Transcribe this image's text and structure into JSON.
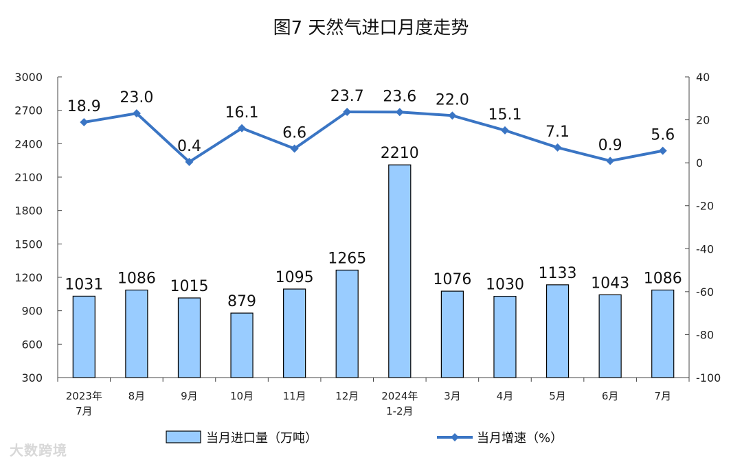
{
  "chart_data": {
    "type": "bar",
    "title": "图7  天然气进口月度走势",
    "categories": [
      "2023年\n7月",
      "8月",
      "9月",
      "10月",
      "11月",
      "12月",
      "2024年\n1-2月",
      "3月",
      "4月",
      "5月",
      "6月",
      "7月"
    ],
    "series": [
      {
        "name": "当月进口量（万吨）",
        "type": "bar",
        "axis": "left",
        "values": [
          1031,
          1086,
          1015,
          879,
          1095,
          1265,
          2210,
          1076,
          1030,
          1133,
          1043,
          1086
        ]
      },
      {
        "name": "当月增速（%）",
        "type": "line",
        "axis": "right",
        "values": [
          18.9,
          23.0,
          0.4,
          16.1,
          6.6,
          23.7,
          23.6,
          22.0,
          15.1,
          7.1,
          0.9,
          5.6
        ],
        "value_labels": [
          "18.9",
          "23.0",
          "0.4",
          "16.1",
          "6.6",
          "23.7",
          "23.6",
          "22.0",
          "15.1",
          "7.1",
          "0.9",
          "5.6"
        ]
      }
    ],
    "y_left": {
      "min": 300,
      "max": 3000,
      "ticks": [
        300,
        600,
        900,
        1200,
        1500,
        1800,
        2100,
        2400,
        2700,
        3000
      ]
    },
    "y_right": {
      "min": -100,
      "max": 40,
      "ticks": [
        -100,
        -80,
        -60,
        -40,
        -20,
        0,
        20,
        40
      ]
    },
    "grid": false,
    "legend_position": "bottom",
    "colors": {
      "bar_fill": "#99ccff",
      "bar_stroke": "#000000",
      "line": "#3a75c4"
    }
  },
  "watermark": "大数跨境"
}
